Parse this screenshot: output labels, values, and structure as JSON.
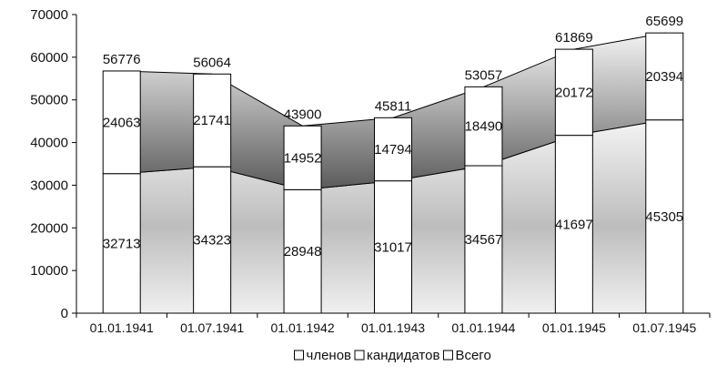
{
  "chart_data": {
    "type": "bar",
    "subtype": "stacked bars with stacked area bands",
    "categories": [
      "01.01.1941",
      "01.07.1941",
      "01.01.1942",
      "01.01.1943",
      "01.01.1944",
      "01.01.1945",
      "01.07.1945"
    ],
    "series": [
      {
        "name": "членов",
        "values": [
          32713,
          34323,
          28948,
          31017,
          34567,
          41697,
          45305
        ]
      },
      {
        "name": "кандидатов",
        "values": [
          24063,
          21741,
          14952,
          14794,
          18490,
          20172,
          20394
        ]
      },
      {
        "name": "Всего",
        "values": [
          56776,
          56064,
          43900,
          45811,
          53057,
          61869,
          65699
        ]
      }
    ],
    "ylim": [
      0,
      70000
    ],
    "yticks": [
      "0",
      "10000",
      "20000",
      "30000",
      "40000",
      "50000",
      "60000",
      "70000"
    ],
    "grid": false,
    "legend": "bottom",
    "colors": {
      "axis": "#000000",
      "bar_fill": "#ffffff",
      "band_dark": "#6e6e6e",
      "band_light": "#f2f2f2"
    }
  }
}
